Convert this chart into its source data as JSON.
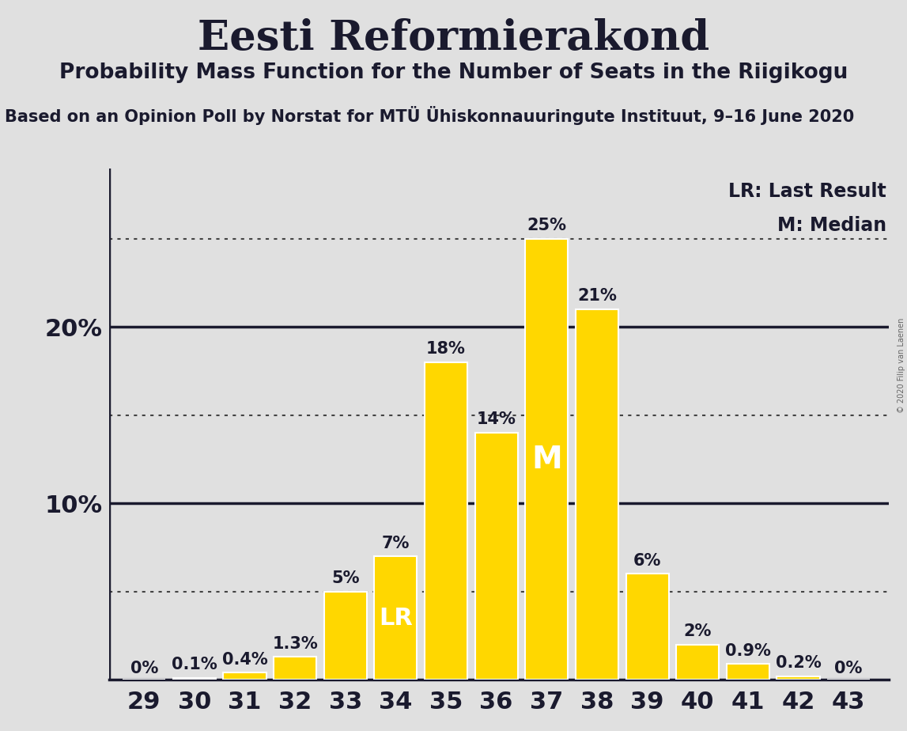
{
  "title": "Eesti Reformierakond",
  "subtitle": "Probability Mass Function for the Number of Seats in the Riigikogu",
  "source_line": "Based on an Opinion Poll by Norstat for MTÜ Ühiskonnauuringute Instituut, 9–16 June 2020",
  "copyright": "© 2020 Filip van Laenen",
  "seats": [
    29,
    30,
    31,
    32,
    33,
    34,
    35,
    36,
    37,
    38,
    39,
    40,
    41,
    42,
    43
  ],
  "probabilities": [
    0.0,
    0.1,
    0.4,
    1.3,
    5.0,
    7.0,
    18.0,
    14.0,
    25.0,
    21.0,
    6.0,
    2.0,
    0.9,
    0.2,
    0.0
  ],
  "labels": [
    "0%",
    "0.1%",
    "0.4%",
    "1.3%",
    "5%",
    "7%",
    "18%",
    "14%",
    "25%",
    "21%",
    "6%",
    "2%",
    "0.9%",
    "0.2%",
    "0%"
  ],
  "bar_color": "#FFD700",
  "bar_edge_color": "#FFFFFF",
  "background_color": "#E0E0E0",
  "last_result_seat": 34,
  "median_seat": 37,
  "lr_label": "LR",
  "median_label": "M",
  "dotted_lines": [
    5,
    15,
    25
  ],
  "solid_lines": [
    10,
    20
  ],
  "ylim": [
    0,
    29
  ],
  "ytick_positions": [
    10,
    20
  ],
  "ytick_labels": [
    "10%",
    "20%"
  ],
  "legend_lr": "LR: Last Result",
  "legend_m": "M: Median",
  "title_fontsize": 38,
  "subtitle_fontsize": 19,
  "source_fontsize": 15,
  "axis_fontsize": 22,
  "bar_label_fontsize": 15,
  "bar_inner_label_fontsize_lr": 22,
  "bar_inner_label_fontsize_m": 28
}
